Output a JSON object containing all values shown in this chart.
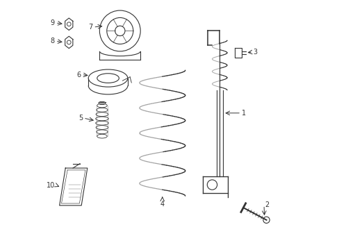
{
  "background_color": "#ffffff",
  "line_color": "#333333",
  "lw": 0.8
}
